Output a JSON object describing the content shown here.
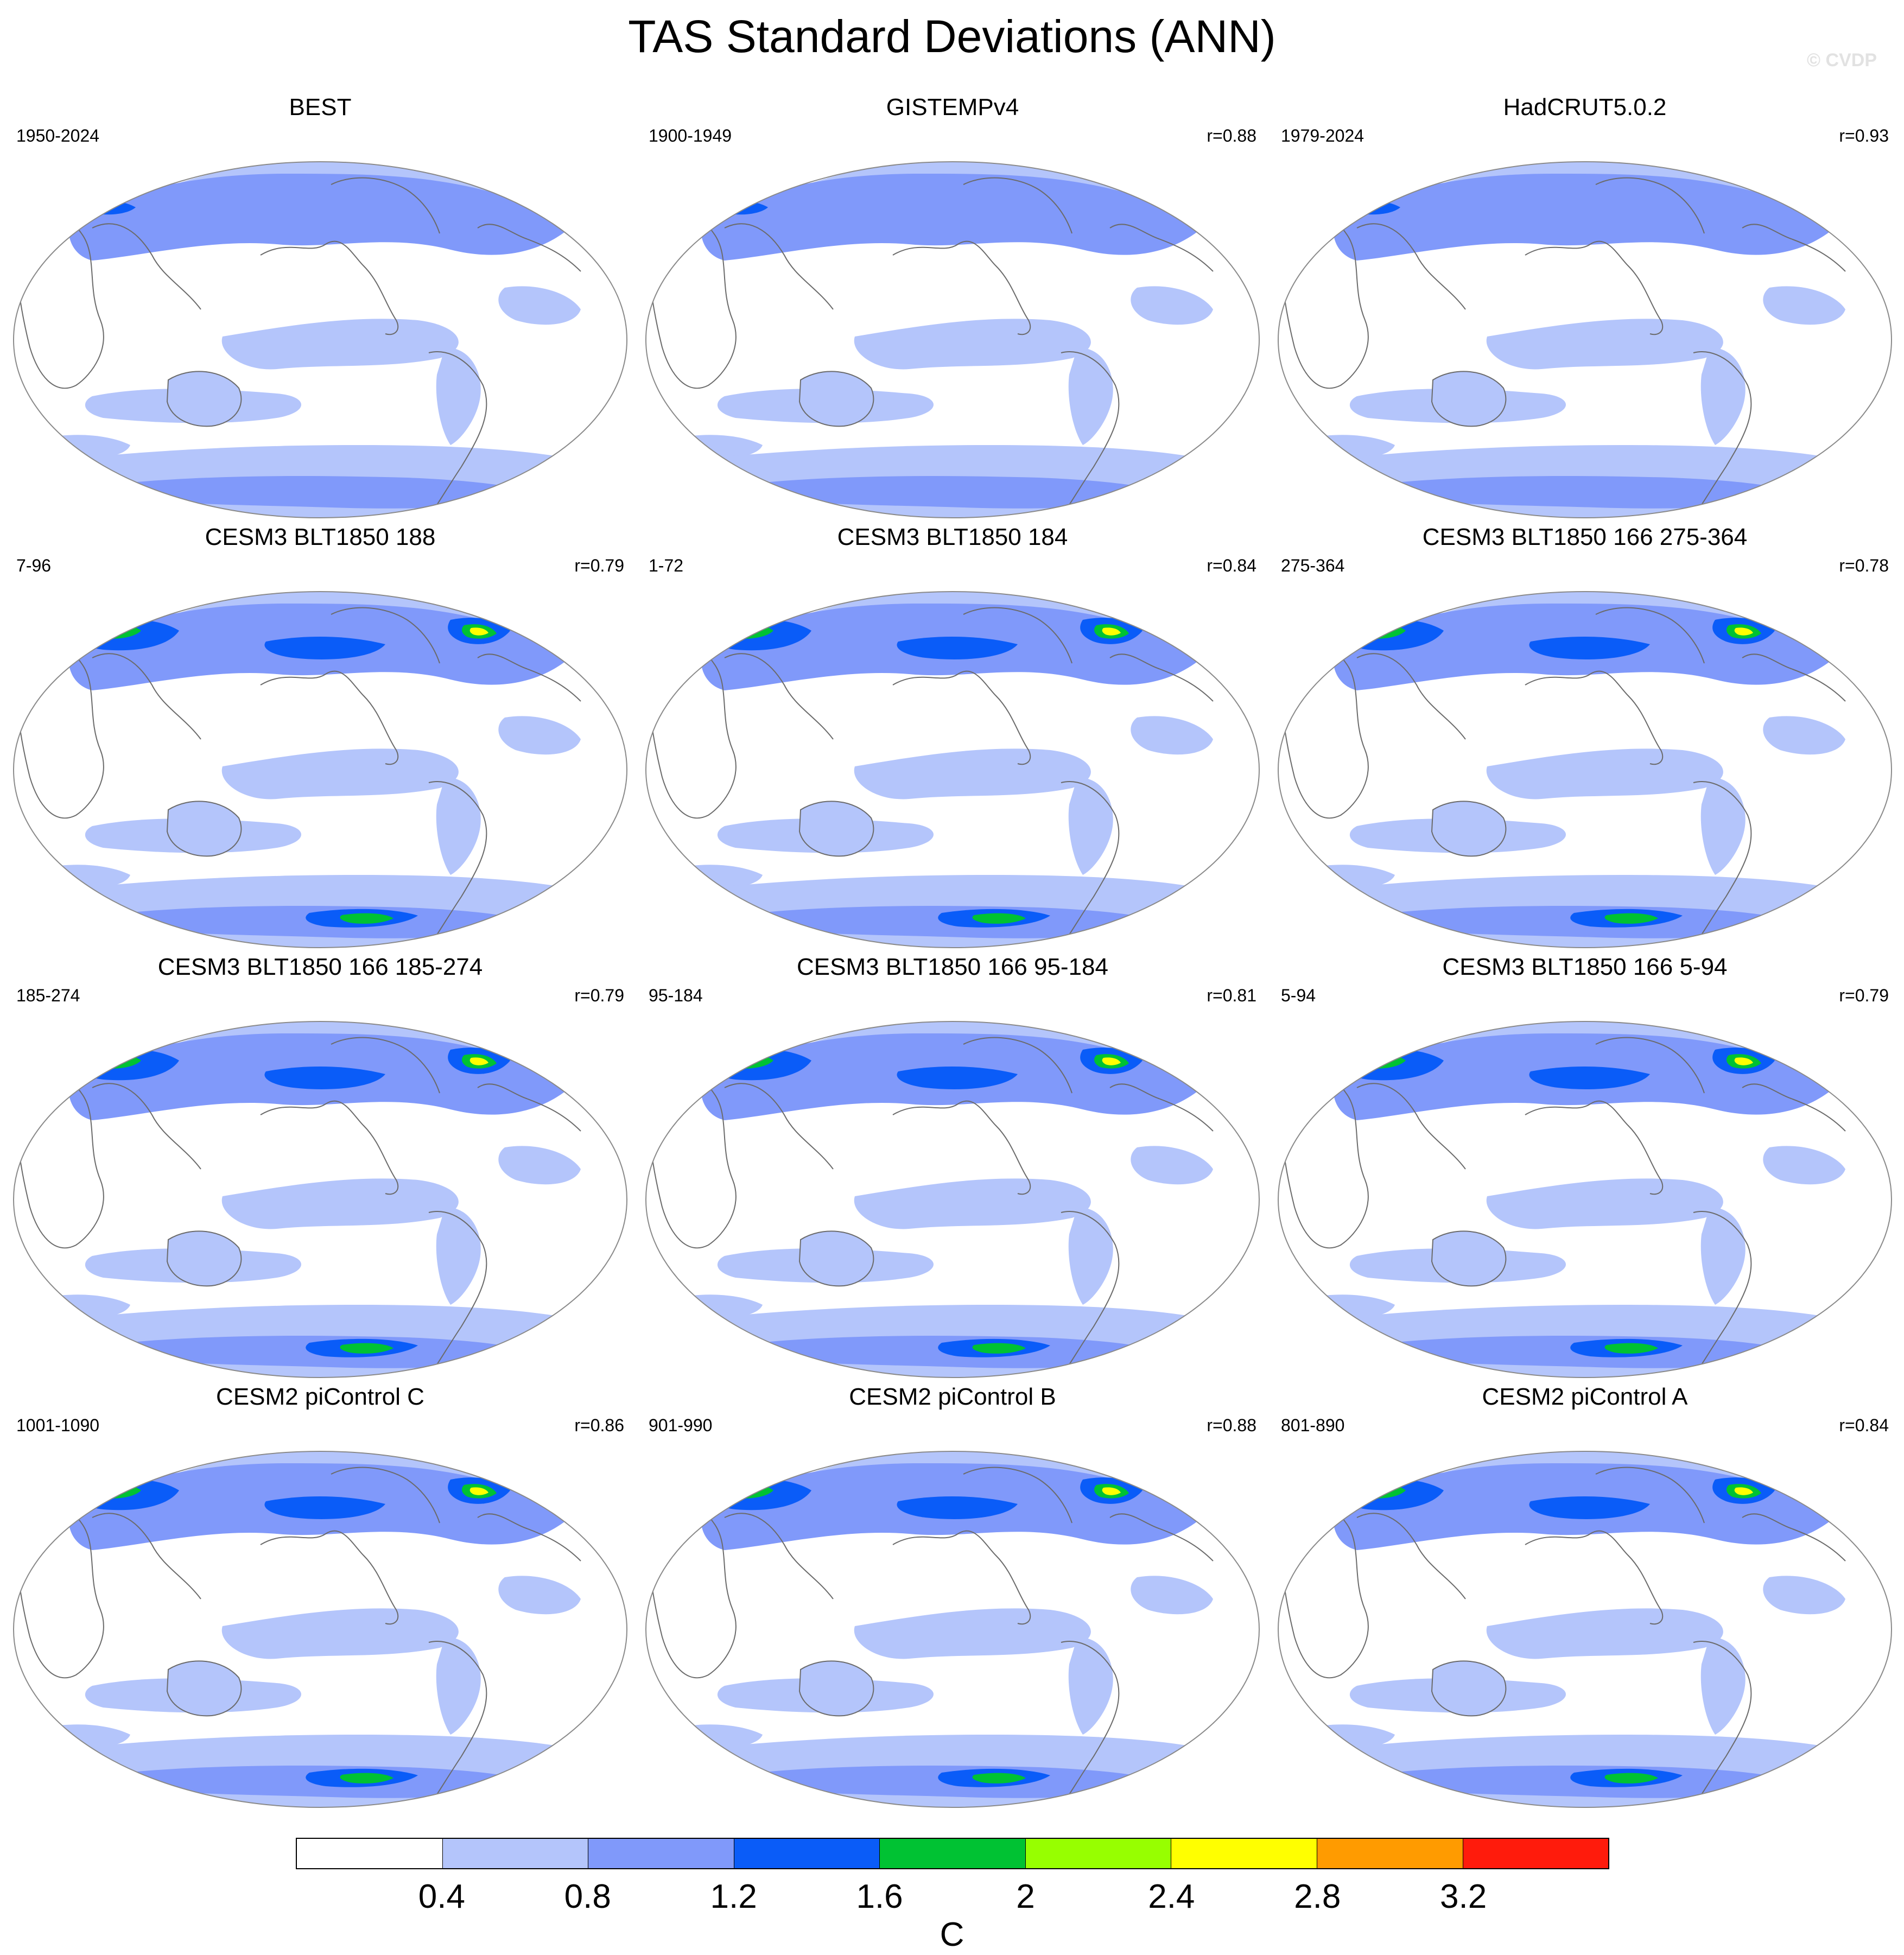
{
  "title": "TAS Standard Deviations (ANN)",
  "watermark": "© CVDP",
  "panels": [
    {
      "title": "BEST",
      "period": "1950-2024",
      "corr": "",
      "variant": 0
    },
    {
      "title": "GISTEMPv4",
      "period": "1900-1949",
      "corr": "r=0.88",
      "variant": 1
    },
    {
      "title": "HadCRUT5.0.2",
      "period": "1979-2024",
      "corr": "r=0.93",
      "variant": 2
    },
    {
      "title": "CESM3 BLT1850 188",
      "period": "7-96",
      "corr": "r=0.79",
      "variant": 3
    },
    {
      "title": "CESM3 BLT1850 184",
      "period": "1-72",
      "corr": "r=0.84",
      "variant": 3
    },
    {
      "title": "CESM3 BLT1850 166 275-364",
      "period": "275-364",
      "corr": "r=0.78",
      "variant": 3
    },
    {
      "title": "CESM3 BLT1850 166 185-274",
      "period": "185-274",
      "corr": "r=0.79",
      "variant": 3
    },
    {
      "title": "CESM3 BLT1850 166 95-184",
      "period": "95-184",
      "corr": "r=0.81",
      "variant": 3
    },
    {
      "title": "CESM3 BLT1850 166 5-94",
      "period": "5-94",
      "corr": "r=0.79",
      "variant": 3
    },
    {
      "title": "CESM2 piControl C",
      "period": "1001-1090",
      "corr": "r=0.86",
      "variant": 4
    },
    {
      "title": "CESM2 piControl B",
      "period": "901-990",
      "corr": "r=0.88",
      "variant": 4
    },
    {
      "title": "CESM2 piControl A",
      "period": "801-890",
      "corr": "r=0.84",
      "variant": 4
    }
  ],
  "colorbar": {
    "units": "C",
    "colors": [
      "#ffffff",
      "#b4c5fb",
      "#8099fa",
      "#0a5cf8",
      "#00c233",
      "#97ff00",
      "#ffff00",
      "#ff9b00",
      "#ff1b0c"
    ],
    "labels": [
      "0.4",
      "0.8",
      "1.2",
      "1.6",
      "2",
      "2.4",
      "2.8",
      "3.2"
    ]
  }
}
